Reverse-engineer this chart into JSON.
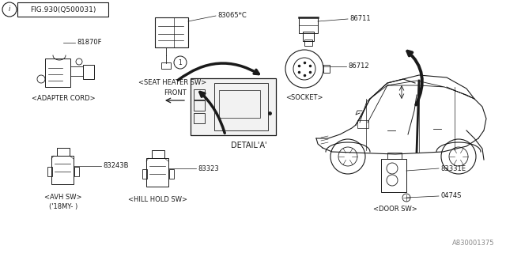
{
  "background_color": "#ffffff",
  "line_color": "#1a1a1a",
  "watermark": "A830001375",
  "fig_text": "FIG.930(Q500031)",
  "parts": {
    "adapter_cord_num": "81870F",
    "adapter_cord_label": "<ADAPTER CORD>",
    "seat_heater_num": "83065*C",
    "seat_heater_label": "<SEAT HEATER SW>",
    "socket_num1": "86711",
    "socket_num2": "86712",
    "socket_label": "<SOCKET>",
    "avh_num": "83243B",
    "avh_label1": "<AVH SW>",
    "avh_label2": "('18MY- )",
    "hill_num": "83323",
    "hill_label": "<HILL HOLD SW>",
    "door_num1": "83331E",
    "door_num2": "0474S",
    "door_label": "<DOOR SW>",
    "detail_label": "DETAIL'A'",
    "front_label": "FRONT"
  }
}
